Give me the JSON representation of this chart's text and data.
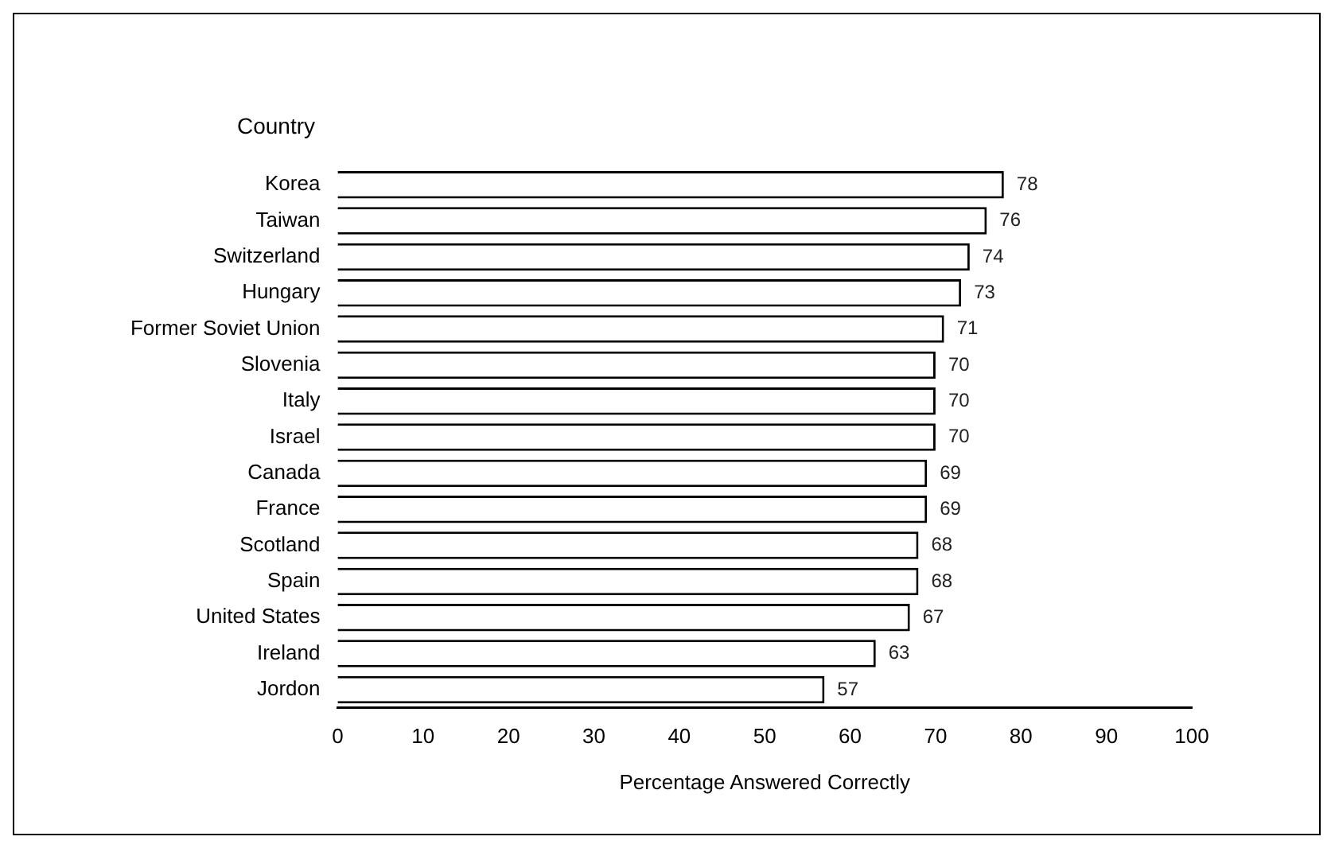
{
  "chart_data": {
    "type": "bar",
    "orientation": "horizontal",
    "ylabel": "Country",
    "xlabel": "Percentage Answered Correctly",
    "categories": [
      "Korea",
      "Taiwan",
      "Switzerland",
      "Hungary",
      "Former Soviet Union",
      "Slovenia",
      "Italy",
      "Israel",
      "Canada",
      "France",
      "Scotland",
      "Spain",
      "United States",
      "Ireland",
      "Jordon"
    ],
    "values": [
      78,
      76,
      74,
      73,
      71,
      70,
      70,
      70,
      69,
      69,
      68,
      68,
      67,
      63,
      57
    ],
    "color": "#ffffff",
    "xlim": [
      0,
      100
    ],
    "xticks": [
      0,
      10,
      20,
      30,
      40,
      50,
      60,
      70,
      80,
      90,
      100
    ],
    "grid": false,
    "legend": false,
    "data_labels": true
  }
}
